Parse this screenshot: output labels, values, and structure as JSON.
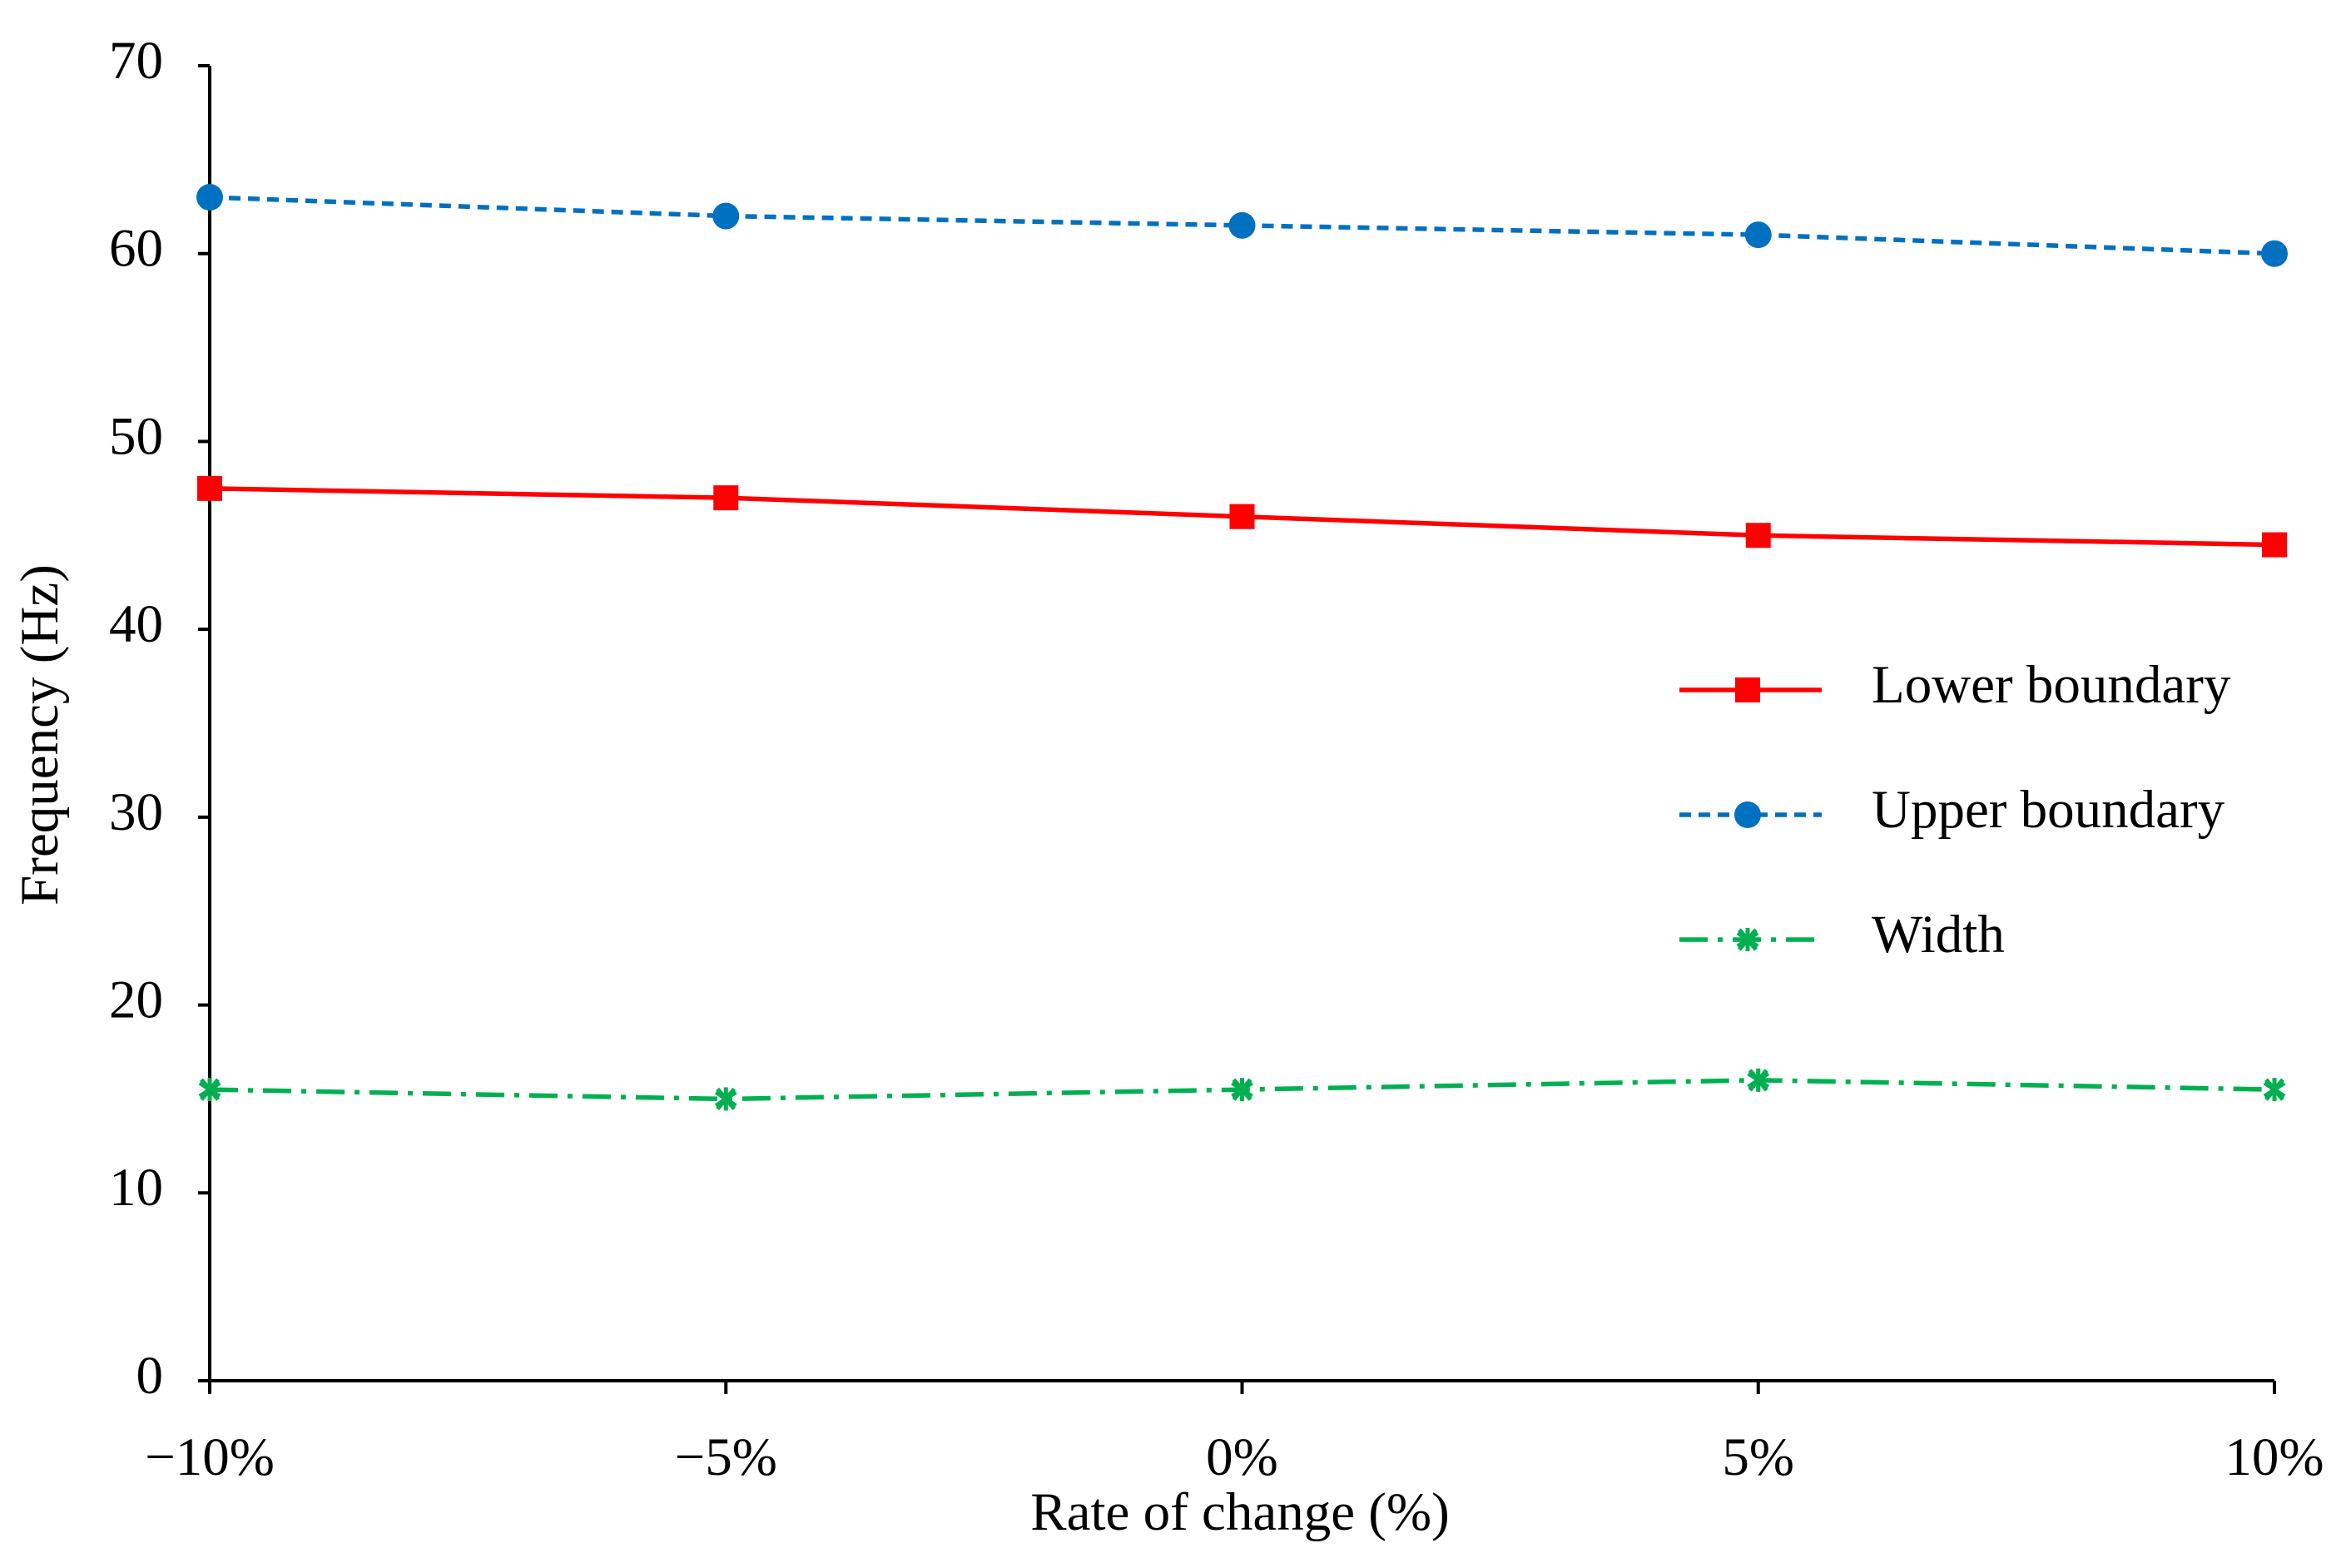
{
  "chart_data": {
    "type": "line",
    "x_label": "Rate of change (%)",
    "y_label": "Frequency (Hz)",
    "categories": [
      "−10%",
      "−5%",
      "0%",
      "5%",
      "10%"
    ],
    "series": [
      {
        "name": "Lower boundary",
        "color": "#ff0000",
        "marker": "square",
        "dash": "solid",
        "values": [
          47.5,
          47,
          46,
          45,
          44.5
        ]
      },
      {
        "name": "Upper boundary",
        "color": "#0070c0",
        "marker": "circle",
        "dash": "dashed",
        "values": [
          63,
          62,
          61.5,
          61,
          60
        ]
      },
      {
        "name": "Width",
        "color": "#00b050",
        "marker": "asterisk",
        "dash": "dashdot",
        "values": [
          15.5,
          15,
          15.5,
          16,
          15.5
        ]
      }
    ],
    "ylim": [
      0,
      70
    ],
    "yticks": [
      0,
      10,
      20,
      30,
      40,
      50,
      60,
      70
    ],
    "grid": false
  }
}
